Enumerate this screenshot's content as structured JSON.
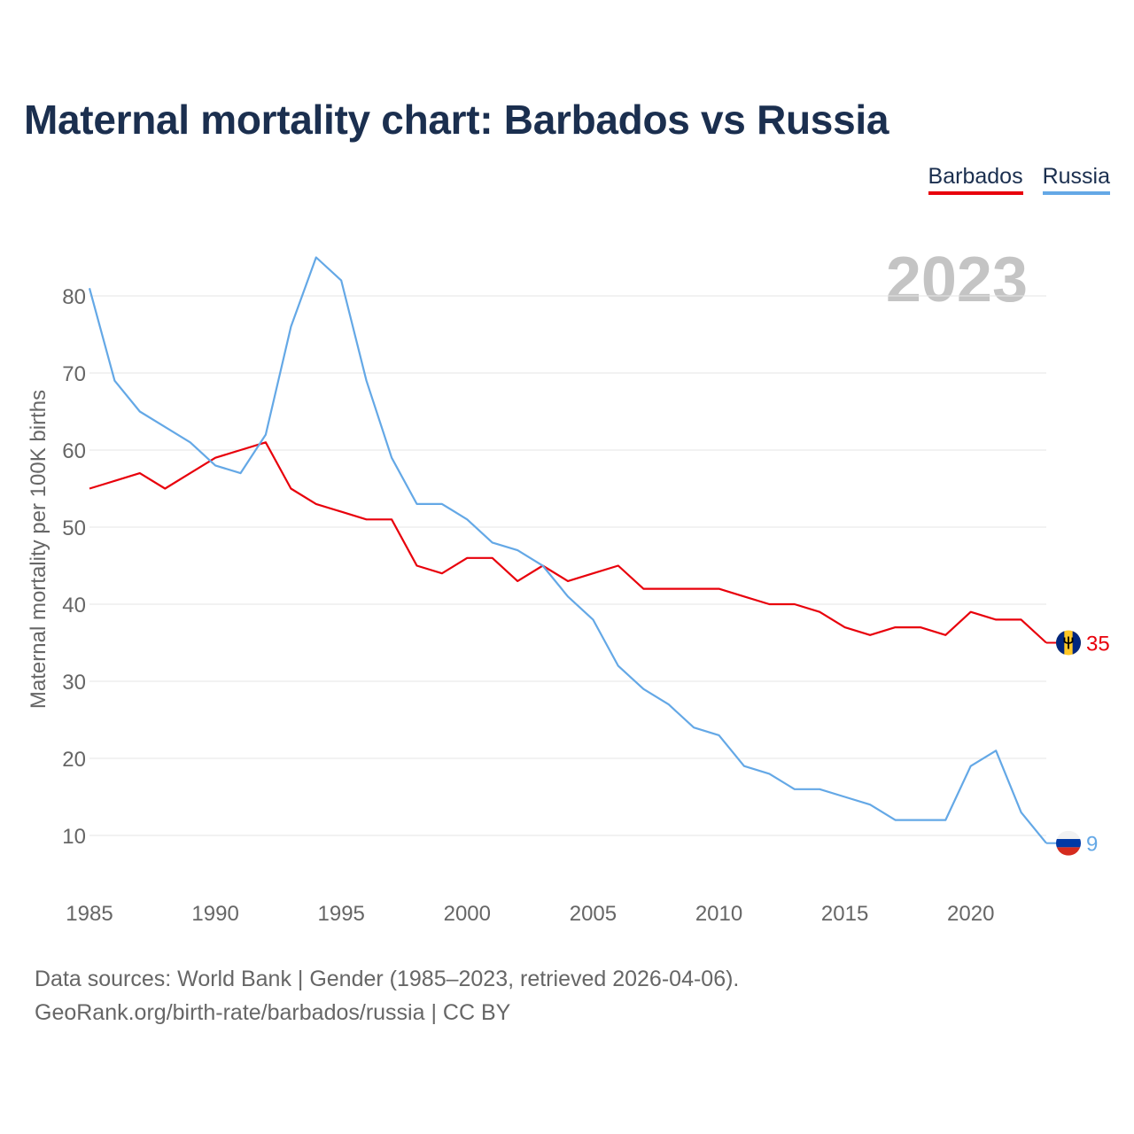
{
  "title": "Maternal mortality chart: Barbados vs Russia",
  "legend": [
    {
      "label": "Barbados",
      "color": "#e8000b"
    },
    {
      "label": "Russia",
      "color": "#64a8e6"
    }
  ],
  "year_label": "2023",
  "footer": {
    "line1": "Data sources: World Bank | Gender (1985–2023, retrieved 2026-04-06).",
    "line2": "GeoRank.org/birth-rate/barbados/russia | CC BY"
  },
  "chart_data": {
    "type": "line",
    "title": "Maternal mortality chart: Barbados vs Russia",
    "xlabel": "",
    "ylabel": "Maternal mortality per 100K births",
    "xlim": [
      1985,
      2023
    ],
    "ylim": [
      5,
      88
    ],
    "grid": true,
    "legend_position": "top-right",
    "x_ticks": [
      1985,
      1990,
      1995,
      2000,
      2005,
      2010,
      2015,
      2020
    ],
    "y_ticks": [
      10,
      20,
      30,
      40,
      50,
      60,
      70,
      80
    ],
    "x": [
      1985,
      1986,
      1987,
      1988,
      1989,
      1990,
      1991,
      1992,
      1993,
      1994,
      1995,
      1996,
      1997,
      1998,
      1999,
      2000,
      2001,
      2002,
      2003,
      2004,
      2005,
      2006,
      2007,
      2008,
      2009,
      2010,
      2011,
      2012,
      2013,
      2014,
      2015,
      2016,
      2017,
      2018,
      2019,
      2020,
      2021,
      2022,
      2023
    ],
    "series": [
      {
        "name": "Barbados",
        "color": "#e8000b",
        "end_label": "35",
        "flag": "barbados",
        "values": [
          55,
          56,
          57,
          55,
          57,
          59,
          60,
          61,
          55,
          53,
          52,
          51,
          51,
          45,
          44,
          46,
          46,
          43,
          45,
          43,
          44,
          45,
          42,
          42,
          42,
          42,
          41,
          40,
          40,
          39,
          37,
          36,
          37,
          37,
          36,
          39,
          38,
          38,
          35
        ]
      },
      {
        "name": "Russia",
        "color": "#64a8e6",
        "end_label": "9",
        "flag": "russia",
        "values": [
          81,
          69,
          65,
          63,
          61,
          58,
          57,
          62,
          76,
          85,
          82,
          69,
          59,
          53,
          53,
          51,
          48,
          47,
          45,
          41,
          38,
          32,
          29,
          27,
          24,
          23,
          19,
          18,
          16,
          16,
          15,
          14,
          12,
          12,
          12,
          19,
          21,
          13,
          9
        ]
      }
    ]
  }
}
